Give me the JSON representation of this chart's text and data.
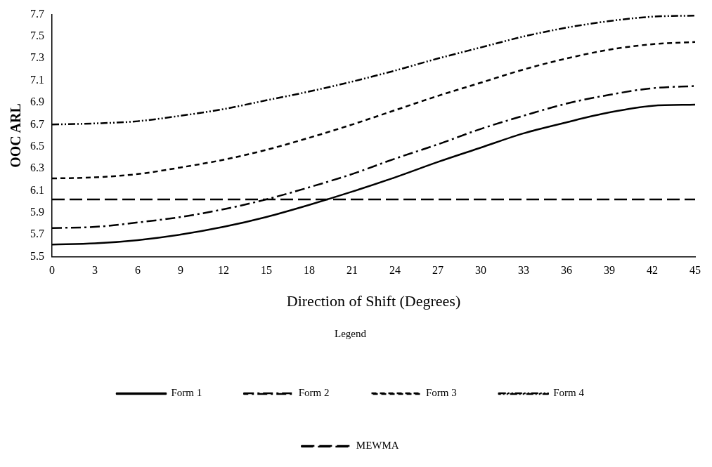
{
  "chart_data": {
    "type": "line",
    "xlabel": "Direction of Shift (Degrees)",
    "ylabel": "OOC ARL",
    "legend_title": "Legend",
    "legend": "bottom",
    "grid": false,
    "marker": "none",
    "x": [
      0,
      3,
      6,
      9,
      12,
      15,
      18,
      21,
      24,
      27,
      30,
      33,
      36,
      39,
      42,
      45
    ],
    "xlim": [
      0,
      45
    ],
    "xticks": [
      0,
      3,
      6,
      9,
      12,
      15,
      18,
      21,
      24,
      27,
      30,
      33,
      36,
      39,
      42,
      45
    ],
    "ylim": [
      5.5,
      7.7
    ],
    "yticks": [
      5.5,
      5.7,
      5.9,
      6.1,
      6.3,
      6.5,
      6.7,
      6.9,
      7.1,
      7.3,
      7.5,
      7.7
    ],
    "series": [
      {
        "name": "Form 1",
        "color": "#000000",
        "line_style": "solid",
        "values": [
          5.61,
          5.62,
          5.65,
          5.7,
          5.77,
          5.86,
          5.97,
          6.09,
          6.22,
          6.36,
          6.49,
          6.62,
          6.72,
          6.81,
          6.87,
          6.88
        ]
      },
      {
        "name": "Form 2",
        "color": "#000000",
        "line_style": "dashed",
        "values": [
          5.76,
          5.77,
          5.81,
          5.86,
          5.93,
          6.02,
          6.13,
          6.25,
          6.39,
          6.52,
          6.66,
          6.78,
          6.89,
          6.97,
          7.03,
          7.05
        ]
      },
      {
        "name": "Form 3",
        "color": "#000000",
        "line_style": "dashed",
        "values": [
          6.21,
          6.22,
          6.25,
          6.31,
          6.38,
          6.47,
          6.58,
          6.7,
          6.83,
          6.96,
          7.08,
          7.2,
          7.3,
          7.38,
          7.43,
          7.45
        ]
      },
      {
        "name": "Form 4",
        "color": "#000000",
        "line_style": "dotted",
        "values": [
          6.7,
          6.71,
          6.73,
          6.78,
          6.84,
          6.92,
          7.0,
          7.09,
          7.19,
          7.3,
          7.4,
          7.5,
          7.58,
          7.64,
          7.68,
          7.69
        ]
      },
      {
        "name": "MEWMA",
        "color": "#000000",
        "line_style": "dashed",
        "x": [
          0,
          45
        ],
        "values": [
          6.02,
          6.02
        ]
      }
    ]
  }
}
